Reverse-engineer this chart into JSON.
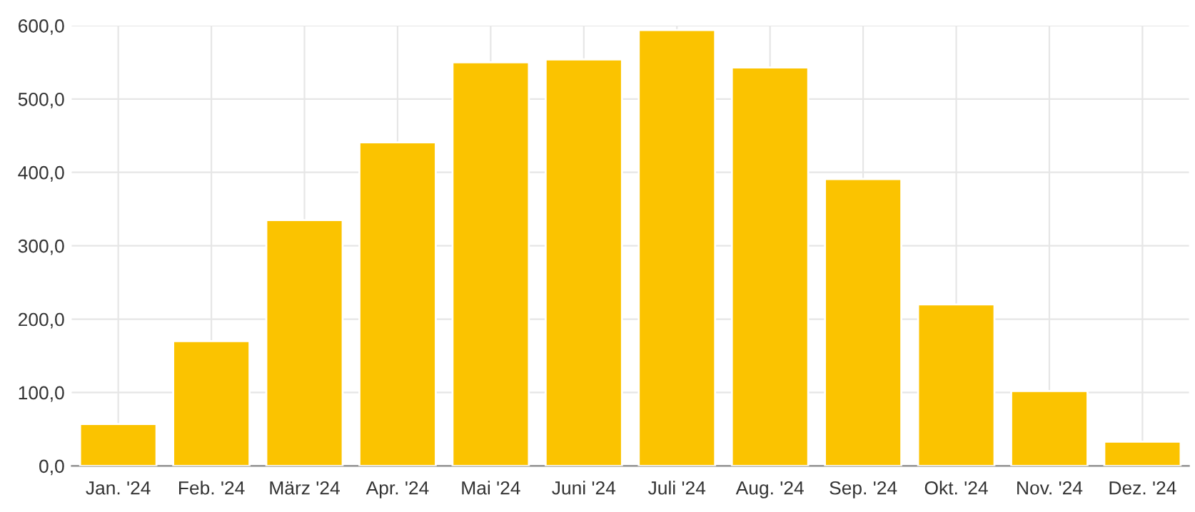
{
  "chart_data": {
    "type": "bar",
    "categories": [
      "Jan. '24",
      "Feb. '24",
      "März '24",
      "Apr. '24",
      "Mai '24",
      "Juni '24",
      "Juli '24",
      "Aug. '24",
      "Sep. '24",
      "Okt. '24",
      "Nov. '24",
      "Dez. '24"
    ],
    "values": [
      57,
      170,
      335,
      441,
      550,
      554,
      594,
      543,
      391,
      220,
      102,
      33
    ],
    "color": "#fbc300",
    "ylim": [
      0,
      600
    ],
    "yticks": [
      {
        "value": 0,
        "label": "0,0"
      },
      {
        "value": 100,
        "label": "100,0"
      },
      {
        "value": 200,
        "label": "200,0"
      },
      {
        "value": 300,
        "label": "300,0"
      },
      {
        "value": 400,
        "label": "400,0"
      },
      {
        "value": 500,
        "label": "500,0"
      },
      {
        "value": 600,
        "label": "600,0"
      }
    ],
    "grid": true
  }
}
